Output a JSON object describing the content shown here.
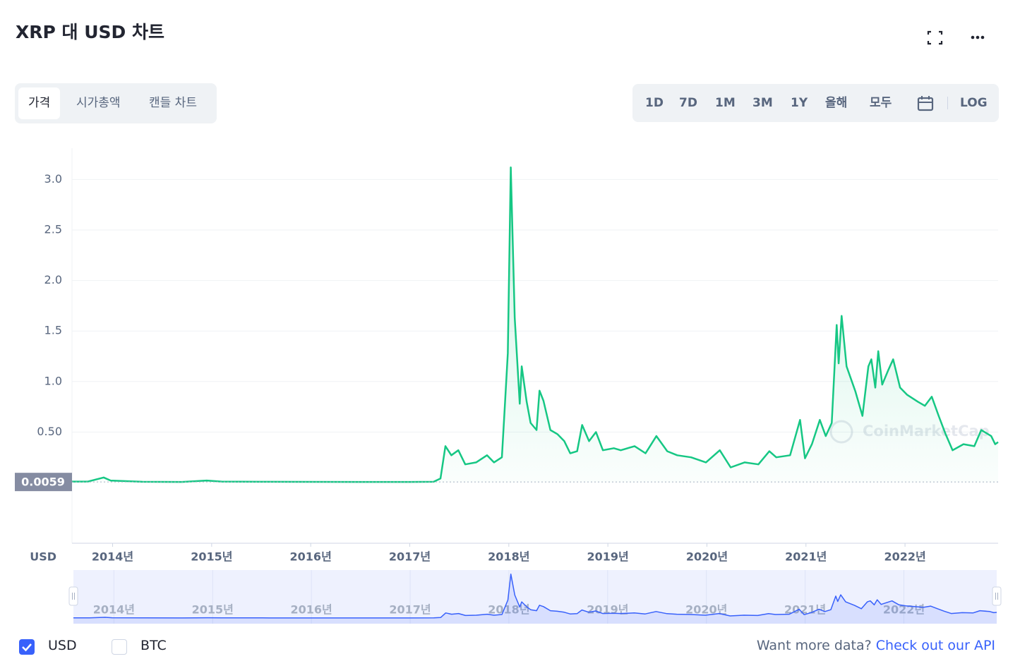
{
  "header": {
    "title": "XRP 대 USD 차트"
  },
  "tabs": [
    "가격",
    "시가총액",
    "캔들 차트"
  ],
  "range_buttons": [
    "1D",
    "7D",
    "1M",
    "3M",
    "1Y",
    "올해",
    "모두"
  ],
  "log_button": "LOG",
  "footer": {
    "prompt": "Want more data?",
    "link": "Check out our API"
  },
  "watermark": "CoinMarketCap",
  "chart_data": {
    "type": "line",
    "y_unit": "USD",
    "log_scale": false,
    "grid": true,
    "xlim": [
      2013.59,
      2022.94
    ],
    "xticks": [
      {
        "value": 2014,
        "label": "2014년"
      },
      {
        "value": 2015,
        "label": "2015년"
      },
      {
        "value": 2016,
        "label": "2016년"
      },
      {
        "value": 2017,
        "label": "2017년"
      },
      {
        "value": 2018,
        "label": "2018년"
      },
      {
        "value": 2019,
        "label": "2019년"
      },
      {
        "value": 2020,
        "label": "2020년"
      },
      {
        "value": 2021,
        "label": "2021년"
      },
      {
        "value": 2022,
        "label": "2022년"
      }
    ],
    "ylim": [
      0,
      3.31
    ],
    "yticks": [
      {
        "value": 0.5,
        "label": "0.50"
      },
      {
        "value": 1,
        "label": "1.0"
      },
      {
        "value": 1.5,
        "label": "1.5"
      },
      {
        "value": 2,
        "label": "2.0"
      },
      {
        "value": 2.5,
        "label": "2.5"
      },
      {
        "value": 3,
        "label": "3.0"
      }
    ],
    "crosshair_value": 0.0059,
    "series": [
      {
        "name": "USD",
        "color": "#16c784",
        "checked": true,
        "x": [
          2013.59,
          2013.75,
          2013.91,
          2013.98,
          2014.3,
          2014.7,
          2014.95,
          2015.1,
          2015.5,
          2016.0,
          2016.5,
          2017.0,
          2017.24,
          2017.31,
          2017.36,
          2017.42,
          2017.49,
          2017.56,
          2017.67,
          2017.78,
          2017.85,
          2017.93,
          2017.96,
          2017.99,
          2018.02,
          2018.06,
          2018.11,
          2018.13,
          2018.18,
          2018.22,
          2018.28,
          2018.31,
          2018.35,
          2018.42,
          2018.49,
          2018.56,
          2018.62,
          2018.69,
          2018.74,
          2018.81,
          2018.88,
          2018.95,
          2019.06,
          2019.13,
          2019.27,
          2019.38,
          2019.49,
          2019.6,
          2019.7,
          2019.84,
          2019.99,
          2020.13,
          2020.24,
          2020.38,
          2020.52,
          2020.63,
          2020.7,
          2020.84,
          2020.94,
          2020.99,
          2021.06,
          2021.14,
          2021.2,
          2021.26,
          2021.31,
          2021.33,
          2021.36,
          2021.41,
          2021.5,
          2021.57,
          2021.63,
          2021.66,
          2021.7,
          2021.73,
          2021.77,
          2021.83,
          2021.88,
          2021.95,
          2022.02,
          2022.13,
          2022.2,
          2022.27,
          2022.34,
          2022.41,
          2022.48,
          2022.59,
          2022.7,
          2022.77,
          2022.87,
          2022.91,
          2022.94
        ],
        "values": [
          0.01,
          0.01,
          0.05,
          0.02,
          0.008,
          0.006,
          0.02,
          0.01,
          0.008,
          0.007,
          0.006,
          0.006,
          0.008,
          0.04,
          0.36,
          0.27,
          0.32,
          0.18,
          0.2,
          0.27,
          0.2,
          0.25,
          0.76,
          1.28,
          3.12,
          1.63,
          0.78,
          1.15,
          0.8,
          0.59,
          0.52,
          0.91,
          0.81,
          0.52,
          0.48,
          0.41,
          0.29,
          0.31,
          0.57,
          0.41,
          0.5,
          0.32,
          0.34,
          0.32,
          0.36,
          0.29,
          0.46,
          0.31,
          0.27,
          0.25,
          0.2,
          0.32,
          0.15,
          0.2,
          0.18,
          0.31,
          0.25,
          0.27,
          0.62,
          0.24,
          0.38,
          0.62,
          0.46,
          0.59,
          1.56,
          1.18,
          1.65,
          1.15,
          0.9,
          0.66,
          1.15,
          1.22,
          0.94,
          1.3,
          0.97,
          1.11,
          1.22,
          0.94,
          0.87,
          0.8,
          0.76,
          0.85,
          0.66,
          0.48,
          0.32,
          0.38,
          0.36,
          0.52,
          0.46,
          0.38,
          0.4
        ]
      }
    ],
    "other_series": [
      {
        "name": "BTC",
        "checked": false
      }
    ]
  }
}
